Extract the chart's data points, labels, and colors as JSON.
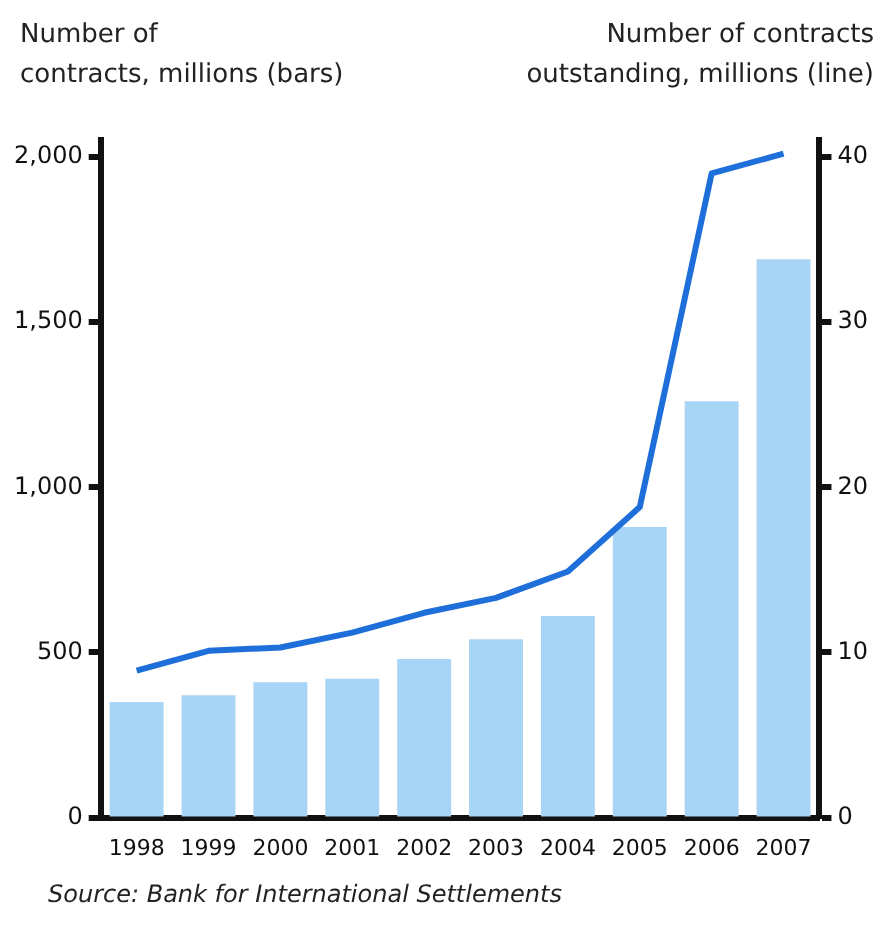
{
  "chart_data": {
    "type": "bar",
    "ylabel": "Number of\ncontracts, millions (bars)",
    "y2label": "Number of contracts\noutstanding, millions (line)",
    "categories": [
      "1998",
      "1999",
      "2000",
      "2001",
      "2002",
      "2003",
      "2004",
      "2005",
      "2006",
      "2007"
    ],
    "series": [
      {
        "color": "#a8d4f5",
        "values": [
          350,
          370,
          410,
          420,
          480,
          540,
          610,
          880,
          1260,
          1690
        ]
      },
      {
        "type": "line",
        "axis": "y2",
        "color": "#1e6fd9",
        "values": [
          8.9,
          10.1,
          10.3,
          11.2,
          12.4,
          13.3,
          14.9,
          18.8,
          39,
          40.2
        ]
      }
    ],
    "ylim": [
      0,
      2050
    ],
    "yticks": [
      0,
      {
        "value": 500,
        "label": "500"
      },
      {
        "value": 1000,
        "label": "1,000"
      },
      {
        "value": 1500,
        "label": "1,500"
      },
      {
        "value": 2000,
        "label": "2,000"
      }
    ],
    "y2lim": [
      0,
      41
    ],
    "y2ticks": [
      0,
      10,
      20,
      30,
      40
    ],
    "grid": false,
    "legend": false,
    "annotations": [
      "Source: Bank for International Settlements"
    ]
  }
}
